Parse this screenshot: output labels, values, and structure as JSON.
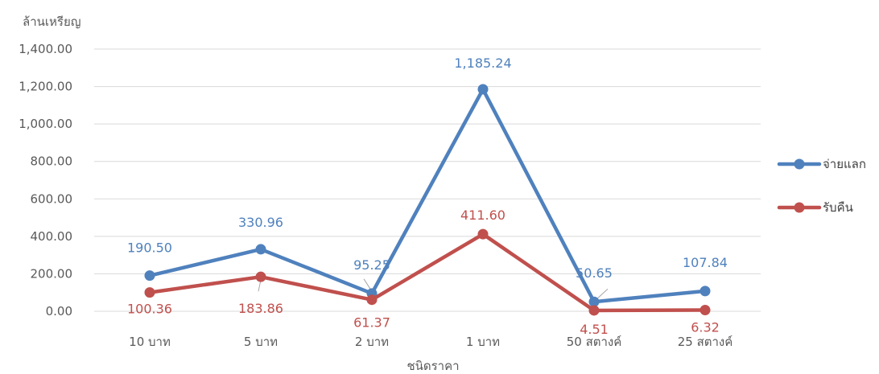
{
  "chart_data": {
    "type": "line",
    "categories": [
      "10 บาท",
      "5 บาท",
      "2 บาท",
      "1 บาท",
      "50 สตางค์",
      "25 สตางค์"
    ],
    "series": [
      {
        "name": "จ่ายแลก",
        "values": [
          190.5,
          330.96,
          95.25,
          1185.24,
          50.65,
          107.84
        ],
        "labels": [
          "190.50",
          "330.96",
          "95.25",
          "1,185.24",
          "50.65",
          "107.84"
        ],
        "color": "#4F81BD"
      },
      {
        "name": "รับคืน",
        "values": [
          100.36,
          183.86,
          61.37,
          411.6,
          4.51,
          6.32
        ],
        "labels": [
          "100.36",
          "183.86",
          "61.37",
          "411.60",
          "4.51",
          "6.32"
        ],
        "color": "#C0504D"
      }
    ],
    "title": "",
    "xlabel": "ชนิดราคา",
    "ylabel": "ล้านเหรียญ",
    "ylim": [
      0,
      1400
    ],
    "yticks": [
      0,
      200,
      400,
      600,
      800,
      1000,
      1200,
      1400
    ],
    "ytick_labels": [
      "0.00",
      "200.00",
      "400.00",
      "600.00",
      "800.00",
      "1,000.00",
      "1,200.00",
      "1,400.00"
    ],
    "grid": true,
    "legend": "right"
  }
}
